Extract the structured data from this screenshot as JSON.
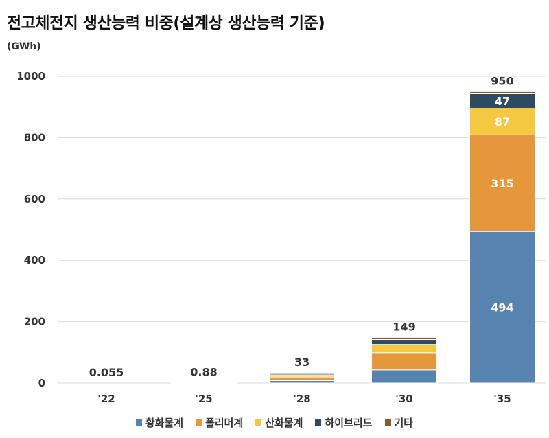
{
  "chart_data": {
    "type": "bar",
    "stacked": true,
    "title": "전고체전지 생산능력 비중(설계상 생산능력 기준)",
    "unit": "(GWh)",
    "categories": [
      "'22",
      "'25",
      "'28",
      "'30",
      "'35"
    ],
    "ylim": [
      0,
      1000
    ],
    "yticks": [
      0,
      200,
      400,
      600,
      800,
      1000
    ],
    "grid": true,
    "legend_position": "bottom",
    "totals": [
      "0.055",
      "0.88",
      "33",
      "149",
      "950"
    ],
    "series": [
      {
        "name": "황화물계",
        "color": "#5683AF",
        "values": [
          0.03,
          0.5,
          8,
          43,
          494
        ],
        "labels": [
          "",
          "",
          "",
          "",
          "494"
        ]
      },
      {
        "name": "폴리머계",
        "color": "#E6973B",
        "values": [
          0.015,
          0.2,
          12,
          56,
          315
        ],
        "labels": [
          "",
          "",
          "",
          "",
          "315"
        ]
      },
      {
        "name": "산화물계",
        "color": "#F5C842",
        "values": [
          0.005,
          0.1,
          7,
          27,
          87
        ],
        "labels": [
          "",
          "",
          "",
          "",
          "87"
        ]
      },
      {
        "name": "하이브리드",
        "color": "#2D4A63",
        "values": [
          0.003,
          0.05,
          4,
          16,
          47
        ],
        "labels": [
          "",
          "",
          "",
          "",
          "47"
        ]
      },
      {
        "name": "기타",
        "color": "#8C5A2B",
        "values": [
          0.002,
          0.03,
          2,
          7,
          7
        ],
        "labels": [
          "",
          "",
          "",
          "",
          ""
        ]
      }
    ]
  }
}
